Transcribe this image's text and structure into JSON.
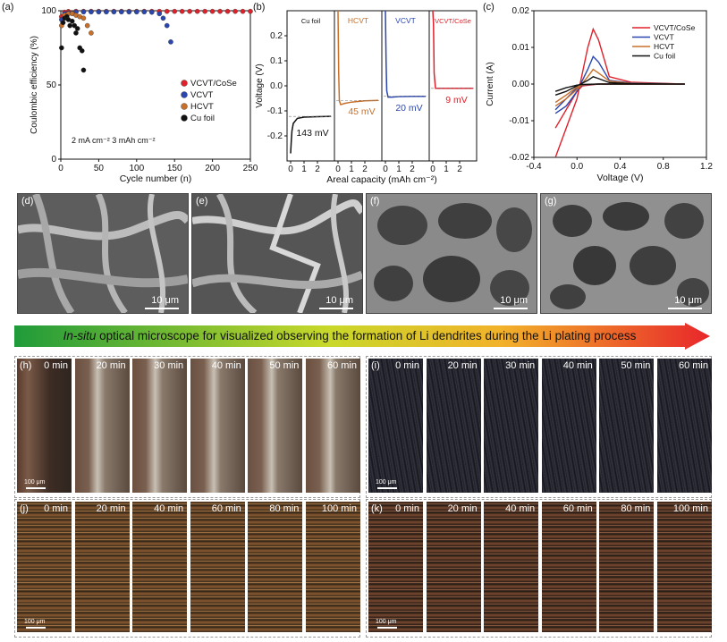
{
  "panels": {
    "a": {
      "label": "(a)"
    },
    "b": {
      "label": "(b)"
    },
    "c": {
      "label": "(c)"
    },
    "d": {
      "label": "(d)",
      "scale": "10 μm"
    },
    "e": {
      "label": "(e)",
      "scale": "10 μm"
    },
    "f": {
      "label": "(f)",
      "scale": "10 μm"
    },
    "g": {
      "label": "(g)",
      "scale": "10 μm"
    },
    "h": {
      "label": "(h)",
      "scale": "100 μm"
    },
    "i": {
      "label": "(i)",
      "scale": "100 μm"
    },
    "j": {
      "label": "(j)",
      "scale": "100 μm"
    },
    "k": {
      "label": "(k)",
      "scale": "100 μm"
    }
  },
  "banner": {
    "italic": "In-situ",
    "text": " optical microscope for visualized observing the formation  of Li dendrites during the Li plating process"
  },
  "times_h": [
    "0 min",
    "20 min",
    "30 min",
    "40 min",
    "50 min",
    "60 min"
  ],
  "times_j": [
    "0 min",
    "20 min",
    "40 min",
    "60 min",
    "80 min",
    "100 min"
  ],
  "colors": {
    "VCVT/CoSe": "#e0202a",
    "VCVT": "#2a46b0",
    "HCVT": "#c8702a",
    "Cu foil": "#111111"
  },
  "chart_data": [
    {
      "type": "scatter",
      "panel": "a",
      "xlabel": "Cycle number (n)",
      "ylabel": "Coulombic efficiency (%)",
      "xlim": [
        0,
        250
      ],
      "ylim": [
        0,
        100
      ],
      "xticks": [
        0,
        50,
        100,
        150,
        200,
        250
      ],
      "yticks": [
        0,
        50,
        100
      ],
      "annotation": "2 mA cm⁻²   3 mAh cm⁻²",
      "legend": [
        "VCVT/CoSe",
        "VCVT",
        "HCVT",
        "Cu foil"
      ],
      "series": [
        {
          "name": "VCVT/CoSe",
          "x": [
            1,
            5,
            10,
            20,
            30,
            40,
            50,
            60,
            70,
            80,
            90,
            100,
            110,
            120,
            130,
            140,
            150,
            160,
            170,
            180,
            190,
            200,
            210,
            220,
            230,
            240,
            250
          ],
          "y": [
            96,
            99,
            99.5,
            99.6,
            99.6,
            99.6,
            99.6,
            99.6,
            99.6,
            99.6,
            99.6,
            99.6,
            99.6,
            99.6,
            99.6,
            99.6,
            99.6,
            99.6,
            99.6,
            99.6,
            99.6,
            99.6,
            99.6,
            99.6,
            99.6,
            99.6,
            99.6
          ]
        },
        {
          "name": "VCVT",
          "x": [
            1,
            5,
            10,
            20,
            30,
            40,
            50,
            60,
            70,
            80,
            90,
            100,
            110,
            120,
            130,
            135,
            140,
            145
          ],
          "y": [
            94,
            98,
            98.5,
            99,
            99.2,
            99.2,
            99.2,
            99.2,
            99.2,
            99.2,
            99.2,
            99.2,
            99.2,
            99,
            98,
            95,
            90,
            79
          ]
        },
        {
          "name": "HCVT",
          "x": [
            1,
            5,
            10,
            15,
            20,
            25,
            30,
            35,
            40
          ],
          "y": [
            90,
            97,
            98,
            98,
            97,
            96,
            95,
            90,
            85
          ]
        },
        {
          "name": "Cu foil",
          "x": [
            1,
            3,
            5,
            8,
            10,
            12,
            15,
            18,
            20,
            22,
            25,
            28,
            30
          ],
          "y": [
            75,
            92,
            95,
            96,
            94,
            90,
            93,
            90,
            85,
            88,
            75,
            73,
            60
          ]
        }
      ]
    },
    {
      "type": "line",
      "panel": "b",
      "xlabel": "Areal capacity (mAh cm⁻²)",
      "ylabel": "Voltage (V)",
      "ylim": [
        -0.3,
        0.3
      ],
      "yticks": [
        -0.2,
        -0.1,
        0.0,
        0.1,
        0.2
      ],
      "xticks": [
        "0",
        "1",
        "2"
      ],
      "series": [
        {
          "name": "Cu foil",
          "label": "143 mV",
          "x": [
            0,
            0.05,
            0.1,
            0.2,
            0.5,
            1,
            2,
            3
          ],
          "y": [
            -0.27,
            -0.22,
            -0.18,
            -0.15,
            -0.13,
            -0.125,
            -0.123,
            -0.122
          ]
        },
        {
          "name": "HCVT",
          "label": "45 mV",
          "x": [
            0,
            0.05,
            0.1,
            0.2,
            0.5,
            1,
            2,
            3
          ],
          "y": [
            0.3,
            0.05,
            -0.06,
            -0.075,
            -0.07,
            -0.065,
            -0.06,
            -0.058
          ]
        },
        {
          "name": "VCVT",
          "label": "20 mV",
          "x": [
            0,
            0.05,
            0.1,
            0.2,
            0.5,
            1,
            2,
            3
          ],
          "y": [
            0.3,
            0.1,
            -0.02,
            -0.045,
            -0.045,
            -0.043,
            -0.042,
            -0.042
          ]
        },
        {
          "name": "VCVT/CoSe",
          "label": "9 mV",
          "x": [
            0,
            0.05,
            0.1,
            0.2,
            0.5,
            1,
            2,
            3
          ],
          "y": [
            0.3,
            0.25,
            0.05,
            -0.01,
            -0.01,
            -0.01,
            -0.01,
            -0.01
          ]
        }
      ]
    },
    {
      "type": "line",
      "panel": "c",
      "xlabel": "Voltage (V)",
      "ylabel": "Current (A)",
      "xlim": [
        -0.4,
        1.2
      ],
      "ylim": [
        -0.02,
        0.02
      ],
      "xticks": [
        -0.4,
        0.0,
        0.4,
        0.8,
        1.2
      ],
      "yticks": [
        -0.02,
        -0.01,
        0.0,
        0.01,
        0.02
      ],
      "legend": [
        "VCVT/CoSe",
        "VCVT",
        "HCVT",
        "Cu foil"
      ],
      "series": [
        {
          "name": "VCVT/CoSe",
          "x": [
            -0.2,
            -0.1,
            0,
            0.1,
            0.15,
            0.2,
            0.3,
            0.5,
            1.0,
            0.5,
            0.2,
            0.05,
            0,
            -0.1,
            -0.2
          ],
          "y": [
            -0.02,
            -0.012,
            -0.004,
            0.01,
            0.015,
            0.012,
            0.002,
            0.0005,
            0,
            0,
            0,
            -0.0005,
            -0.002,
            -0.007,
            -0.012
          ]
        },
        {
          "name": "VCVT",
          "x": [
            -0.2,
            -0.1,
            0,
            0.1,
            0.15,
            0.2,
            0.3,
            0.5,
            1.0,
            0.5,
            0.2,
            0.05,
            0,
            -0.1,
            -0.2
          ],
          "y": [
            -0.008,
            -0.006,
            -0.002,
            0.004,
            0.0075,
            0.006,
            0.001,
            0.0003,
            0,
            0,
            0,
            -0.0003,
            -0.001,
            -0.004,
            -0.007
          ]
        },
        {
          "name": "HCVT",
          "x": [
            -0.2,
            -0.1,
            0,
            0.1,
            0.15,
            0.2,
            0.3,
            0.5,
            1.0,
            0.5,
            0.2,
            0.05,
            0,
            -0.1,
            -0.2
          ],
          "y": [
            -0.006,
            -0.004,
            -0.0015,
            0.002,
            0.004,
            0.003,
            0.0008,
            0.0002,
            0,
            0,
            0,
            -0.0002,
            -0.0008,
            -0.003,
            -0.005
          ]
        },
        {
          "name": "Cu foil",
          "x": [
            -0.2,
            -0.1,
            0,
            0.1,
            0.15,
            0.2,
            0.3,
            0.5,
            1.0,
            0.5,
            0.2,
            0.05,
            0,
            -0.1,
            -0.2
          ],
          "y": [
            -0.003,
            -0.002,
            -0.0005,
            0.001,
            0.002,
            0.0015,
            0.0004,
            0.0001,
            0,
            0,
            0,
            -0.0001,
            -0.0003,
            -0.001,
            -0.002
          ]
        }
      ]
    }
  ]
}
